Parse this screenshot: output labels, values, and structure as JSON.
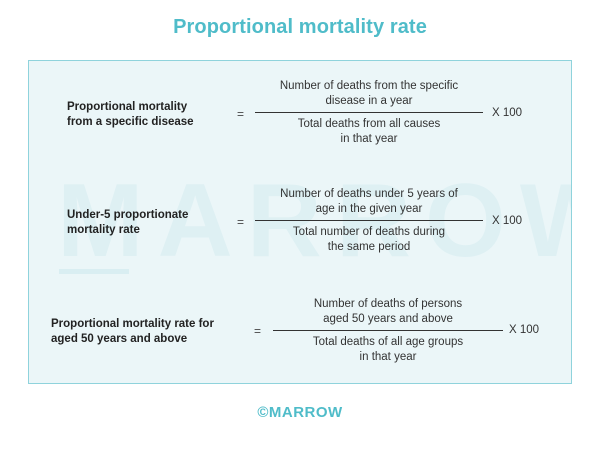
{
  "title": "Proportional mortality rate",
  "watermark": "MARROW",
  "formulas": [
    {
      "label": [
        "Proportional mortality",
        "from a specific disease"
      ],
      "equals": "=",
      "numerator": [
        "Number of deaths from the specific",
        "disease in a year"
      ],
      "denominator": [
        "Total deaths from all causes",
        "in that year"
      ],
      "multiplier": "X  100"
    },
    {
      "label": [
        "Under-5 proportionate",
        "mortality rate"
      ],
      "equals": "=",
      "numerator": [
        "Number of deaths under 5 years of",
        "age in the given year"
      ],
      "denominator": [
        "Total number of deaths during",
        "the same period"
      ],
      "multiplier": "X  100"
    },
    {
      "label": [
        "Proportional mortality rate for",
        "aged 50 years and above"
      ],
      "equals": "=",
      "numerator": [
        "Number of deaths of persons",
        "aged 50 years and above"
      ],
      "denominator": [
        "Total deaths of all age groups",
        "in that year"
      ],
      "multiplier": "X  100"
    }
  ],
  "footer": "©MARROW",
  "colors": {
    "accent": "#4fbcc9",
    "panel_bg": "#ebf6f8",
    "panel_border": "#8fd3dc"
  }
}
